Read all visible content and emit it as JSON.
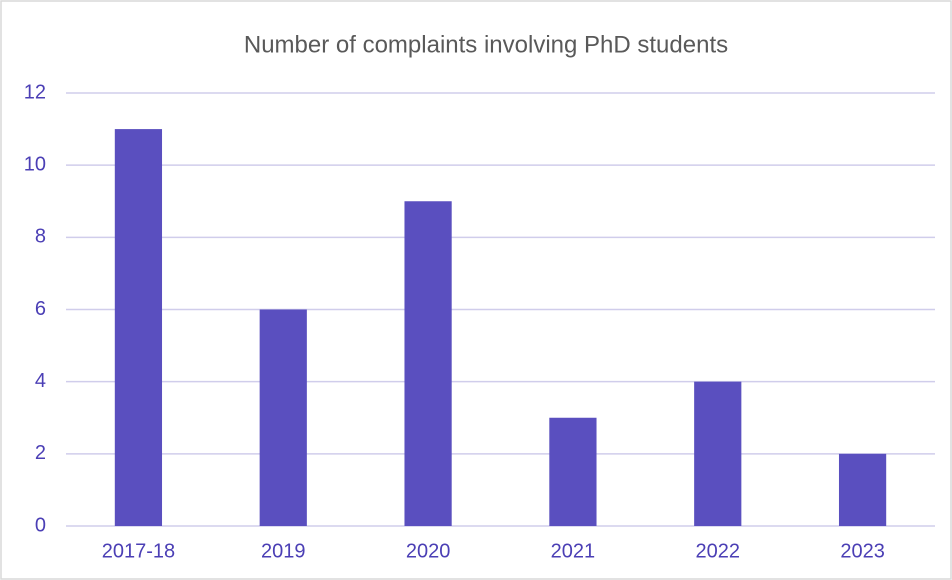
{
  "chart_data": {
    "type": "bar",
    "title": "Number of complaints involving PhD students",
    "categories": [
      "2017-18",
      "2019",
      "2020",
      "2021",
      "2022",
      "2023"
    ],
    "values": [
      11,
      6,
      9,
      3,
      4,
      2
    ],
    "color": "#5a4fbf",
    "ylim": [
      0,
      12
    ],
    "yticks": [
      0,
      2,
      4,
      6,
      8,
      10,
      12
    ],
    "grid": true
  }
}
